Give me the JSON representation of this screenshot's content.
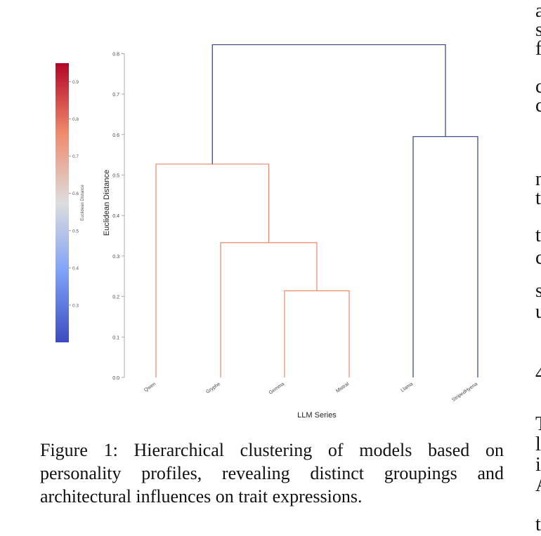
{
  "chart_data": {
    "type": "dendrogram",
    "xlabel": "LLM Series",
    "ylabel": "Euclidean Distance",
    "ylim": [
      0,
      0.82
    ],
    "yticks": [
      "0.0",
      "0.1",
      "0.2",
      "0.3",
      "0.4",
      "0.5",
      "0.6",
      "0.7",
      "0.8"
    ],
    "leaves": [
      "Qwen",
      "Gryphe",
      "Gemma",
      "Mistral",
      "Llama",
      "StripedHyena"
    ],
    "merges": [
      {
        "left": "Gemma",
        "right": "Mistral",
        "height": 0.214,
        "color": "#e9876b"
      },
      {
        "left": "Gryphe",
        "right": "Gemma+Mistral",
        "height": 0.333,
        "color": "#e9876b"
      },
      {
        "left": "Qwen",
        "right": "Gryphe+Gemma+Mistral",
        "height": 0.527,
        "color": "#e9876b"
      },
      {
        "left": "Llama",
        "right": "StripedHyena",
        "height": 0.595,
        "color": "#2e3c8e"
      },
      {
        "left": "Qwen+Gryphe+Gemma+Mistral",
        "right": "Llama+StripedHyena",
        "height": 0.822,
        "color": "#2e3c8e"
      }
    ],
    "colorbar": {
      "label": "Euclidean Distance",
      "range": [
        0.2,
        0.95
      ],
      "ticks": [
        "0.9",
        "0.8",
        "0.7",
        "0.6",
        "0.5",
        "0.4",
        "0.3"
      ],
      "colors": [
        "#b40426",
        "#f08a6c",
        "#dddddd",
        "#7ea1f8",
        "#3b4cc0"
      ]
    },
    "grid": false,
    "legend": "none"
  },
  "caption": "Figure 1: Hierarchical clustering of models based on personality profiles, revealing distinct groupings and architectural influences on trait expressions.",
  "right_column_letters": [
    "a",
    "s",
    "f",
    "c",
    "c",
    "n",
    "t",
    "t",
    "c",
    "s",
    "u",
    "4",
    "T",
    "l",
    "i",
    "A",
    "t"
  ]
}
